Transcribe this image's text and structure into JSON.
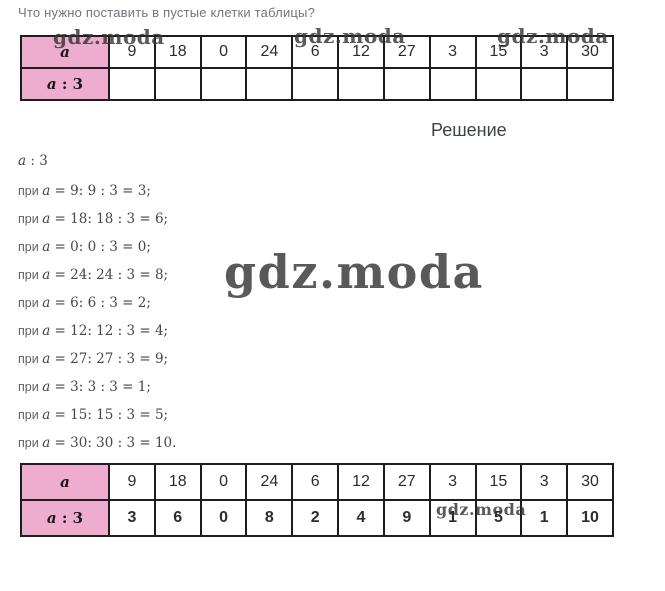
{
  "colors": {
    "answer_red": "#e2231d",
    "header_pink": "#eeadce"
  },
  "question": "Что нужно поставить в пустые клетки таблицы?",
  "solution_heading": "Решение",
  "watermark": {
    "text": "gdz.moda"
  },
  "table": {
    "header_var": "a",
    "header_op_var": "a",
    "header_op_rest": " : 3",
    "values": [
      "9",
      "18",
      "0",
      "24",
      "6",
      "12",
      "27",
      "3",
      "15",
      "3",
      "30"
    ],
    "answers": [
      "3",
      "6",
      "0",
      "8",
      "2",
      "4",
      "9",
      "1",
      "5",
      "1",
      "10"
    ]
  },
  "solution": {
    "intro": {
      "var": "a",
      "rest": " : 3"
    },
    "steps": [
      {
        "pre": "при ",
        "var": "a",
        "rest": " = 9: 9 : 3 = 3;"
      },
      {
        "pre": "при ",
        "var": "a",
        "rest": " = 18: 18 : 3 = 6;"
      },
      {
        "pre": "при ",
        "var": "a",
        "rest": " = 0: 0 : 3 = 0;"
      },
      {
        "pre": "при ",
        "var": "a",
        "rest": " = 24: 24 : 3 = 8;"
      },
      {
        "pre": "при ",
        "var": "a",
        "rest": " = 6: 6 : 3 = 2;"
      },
      {
        "pre": "при ",
        "var": "a",
        "rest": " = 12: 12 : 3 = 4;"
      },
      {
        "pre": "при ",
        "var": "a",
        "rest": " = 27: 27 : 3 = 9;"
      },
      {
        "pre": "при ",
        "var": "a",
        "rest": " = 3: 3 : 3 = 1;"
      },
      {
        "pre": "при ",
        "var": "a",
        "rest": " = 15: 15 : 3 = 5;"
      },
      {
        "pre": "при ",
        "var": "a",
        "rest": " = 30: 30 : 3 = 10."
      }
    ]
  }
}
